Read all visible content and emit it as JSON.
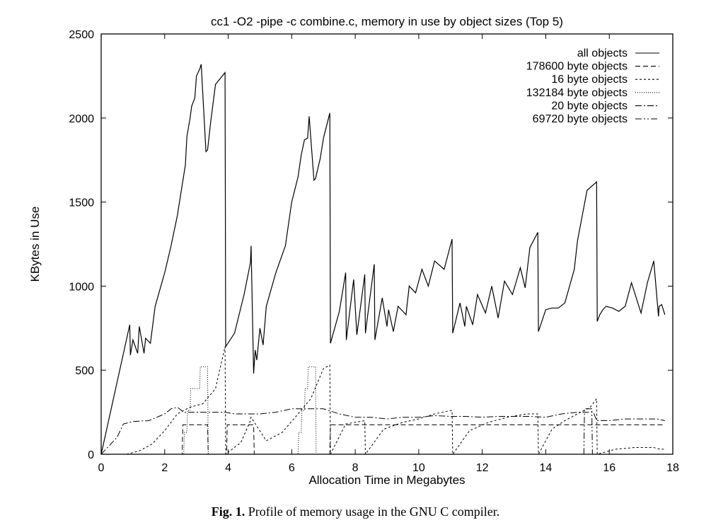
{
  "figure": {
    "caption_label": "Fig. 1.",
    "caption_text": "Profile of memory usage in the GNU C compiler."
  },
  "chart_data": {
    "type": "line",
    "title": "cc1 -O2 -pipe -c combine.c, memory in use by object sizes (Top 5)",
    "xlabel": "Allocation Time in Megabytes",
    "ylabel": "KBytes in Use",
    "xlim": [
      0,
      18
    ],
    "ylim": [
      0,
      2500
    ],
    "xticks": [
      0,
      2,
      4,
      6,
      8,
      10,
      12,
      14,
      16,
      18
    ],
    "yticks": [
      0,
      500,
      1000,
      1500,
      2000,
      2500
    ],
    "grid": false,
    "legend_position": "top-right",
    "series": [
      {
        "name": "all objects",
        "style": "solid",
        "x": [
          0,
          0.9,
          0.92,
          1.0,
          1.15,
          1.2,
          1.35,
          1.4,
          1.55,
          1.7,
          2.0,
          2.2,
          2.4,
          2.5,
          2.65,
          2.7,
          2.8,
          2.85,
          2.95,
          3.0,
          3.1,
          3.15,
          3.3,
          3.35,
          3.45,
          3.6,
          3.9,
          3.92,
          4.2,
          4.5,
          4.7,
          4.72,
          4.8,
          4.85,
          4.9,
          5.0,
          5.1,
          5.2,
          5.5,
          5.8,
          6.0,
          6.2,
          6.3,
          6.4,
          6.5,
          6.55,
          6.7,
          6.75,
          6.9,
          7.0,
          7.2,
          7.22,
          7.5,
          7.7,
          7.72,
          7.95,
          8.05,
          8.3,
          8.32,
          8.6,
          8.62,
          8.85,
          9.0,
          9.05,
          9.2,
          9.35,
          9.6,
          9.7,
          9.9,
          10.1,
          10.3,
          10.5,
          10.8,
          11.05,
          11.07,
          11.3,
          11.45,
          11.5,
          11.7,
          11.85,
          12.1,
          12.3,
          12.5,
          12.7,
          12.95,
          13.2,
          13.35,
          13.5,
          13.75,
          13.77,
          14.0,
          14.2,
          14.4,
          14.6,
          14.9,
          15.0,
          15.3,
          15.6,
          15.62,
          15.7,
          15.8,
          15.9,
          16.1,
          16.3,
          16.5,
          16.7,
          16.9,
          17.0,
          17.2,
          17.4,
          17.55,
          17.57,
          17.65,
          17.75
        ],
        "y": [
          0,
          770,
          590,
          680,
          600,
          760,
          600,
          690,
          660,
          880,
          1080,
          1240,
          1420,
          1540,
          1720,
          1890,
          2000,
          2070,
          2120,
          2250,
          2290,
          2320,
          1800,
          1810,
          1980,
          2200,
          2270,
          640,
          720,
          950,
          1140,
          1240,
          480,
          620,
          560,
          750,
          650,
          880,
          1080,
          1240,
          1500,
          1650,
          1780,
          1870,
          1880,
          2010,
          1630,
          1640,
          1760,
          1880,
          2030,
          660,
          850,
          1080,
          680,
          1040,
          710,
          1070,
          720,
          1130,
          680,
          930,
          760,
          860,
          730,
          880,
          830,
          1000,
          960,
          1100,
          1000,
          1150,
          1100,
          1280,
          720,
          900,
          760,
          880,
          770,
          950,
          840,
          1000,
          810,
          1030,
          950,
          1110,
          990,
          1230,
          1320,
          730,
          860,
          870,
          870,
          900,
          1100,
          1270,
          1570,
          1620,
          790,
          830,
          860,
          880,
          870,
          850,
          880,
          1020,
          900,
          840,
          1020,
          1150,
          820,
          880,
          890,
          830
        ]
      },
      {
        "name": "178600 byte objects",
        "style": "dashed",
        "x": [
          0,
          2.55,
          2.57,
          3.35,
          3.37,
          3.95,
          3.97,
          4.8,
          4.82,
          7.2,
          7.22,
          17.7
        ],
        "y": [
          0,
          0,
          175,
          175,
          0,
          0,
          175,
          175,
          0,
          0,
          175,
          175
        ]
      },
      {
        "name": "16 byte objects",
        "style": "dotted",
        "x": [
          0,
          0.8,
          1.2,
          1.6,
          2.0,
          2.4,
          2.8,
          3.2,
          3.6,
          3.9,
          3.92,
          4.4,
          4.7,
          4.72,
          5.2,
          5.7,
          6.2,
          6.6,
          7.0,
          7.2,
          7.22,
          7.7,
          8.3,
          8.32,
          8.9,
          9.5,
          10.0,
          10.5,
          11.0,
          11.05,
          11.07,
          11.6,
          12.2,
          12.8,
          13.4,
          13.75,
          13.77,
          14.2,
          14.6,
          15.0,
          15.4,
          15.6,
          15.62,
          16.2,
          16.8,
          17.4,
          17.6,
          17.75
        ],
        "y": [
          0,
          0,
          20,
          60,
          140,
          240,
          280,
          300,
          390,
          640,
          0,
          70,
          200,
          220,
          80,
          130,
          240,
          330,
          510,
          530,
          0,
          180,
          200,
          0,
          150,
          190,
          210,
          240,
          260,
          260,
          0,
          140,
          190,
          220,
          240,
          240,
          0,
          150,
          200,
          240,
          280,
          330,
          0,
          30,
          40,
          40,
          30,
          30
        ]
      },
      {
        "name": "132184 byte objects",
        "style": "fine-dotted",
        "x": [
          0,
          2.6,
          2.62,
          2.7,
          2.72,
          2.8,
          2.82,
          3.1,
          3.12,
          3.35,
          3.37,
          6.2,
          6.22,
          6.3,
          6.32,
          6.4,
          6.42,
          6.5,
          6.52,
          6.75,
          6.77,
          17.7
        ],
        "y": [
          0,
          0,
          130,
          130,
          260,
          260,
          390,
          390,
          520,
          520,
          0,
          0,
          130,
          130,
          260,
          260,
          390,
          390,
          520,
          520,
          0,
          0
        ]
      },
      {
        "name": "20 byte objects",
        "style": "dash-dot",
        "x": [
          0,
          0.5,
          0.7,
          1.0,
          1.5,
          2.0,
          2.2,
          2.4,
          2.6,
          3.0,
          3.4,
          3.9,
          4.2,
          4.6,
          5.0,
          5.5,
          6.0,
          6.5,
          7.0,
          7.5,
          8.0,
          8.5,
          9.0,
          9.5,
          10.0,
          10.5,
          11.0,
          11.5,
          12.0,
          12.5,
          13.0,
          13.5,
          14.0,
          14.5,
          15.0,
          15.5,
          15.6,
          16.0,
          16.5,
          17.0,
          17.5,
          17.75
        ],
        "y": [
          0,
          100,
          180,
          195,
          200,
          240,
          270,
          280,
          250,
          250,
          250,
          250,
          240,
          240,
          240,
          250,
          270,
          270,
          270,
          240,
          220,
          220,
          210,
          220,
          220,
          230,
          225,
          225,
          220,
          225,
          225,
          225,
          220,
          240,
          250,
          250,
          200,
          200,
          210,
          210,
          210,
          200
        ]
      },
      {
        "name": "69720 byte objects",
        "style": "dash-dot-dot",
        "x": [
          0,
          15.2,
          15.22,
          15.45,
          15.47,
          15.6,
          15.62,
          17.75
        ],
        "y": [
          0,
          0,
          270,
          270,
          0,
          0,
          0,
          0
        ]
      }
    ]
  }
}
